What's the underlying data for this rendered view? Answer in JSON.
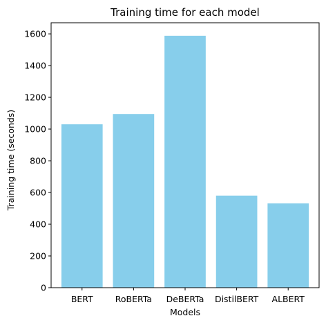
{
  "chart_data": {
    "type": "bar",
    "title": "Training time for each model",
    "xlabel": "Models",
    "ylabel": "Training time (seconds)",
    "categories": [
      "BERT",
      "RoBERTa",
      "DeBERTa",
      "DistilBERT",
      "ALBERT"
    ],
    "values": [
      1030,
      1095,
      1588,
      580,
      532
    ],
    "ylim": [
      0,
      1670
    ],
    "yticks": [
      0,
      200,
      400,
      600,
      800,
      1000,
      1200,
      1400,
      1600
    ],
    "bar_color": "#87CEEB",
    "grid": false,
    "legend": "none"
  }
}
